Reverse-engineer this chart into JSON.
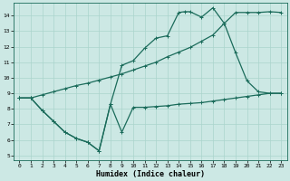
{
  "xlabel": "Humidex (Indice chaleur)",
  "bg_color": "#cce8e4",
  "line_color": "#1a6b5a",
  "grid_color": "#aad4cc",
  "xlim": [
    -0.5,
    23.5
  ],
  "ylim": [
    4.7,
    14.8
  ],
  "yticks": [
    5,
    6,
    7,
    8,
    9,
    10,
    11,
    12,
    13,
    14
  ],
  "xticks": [
    0,
    1,
    2,
    3,
    4,
    5,
    6,
    7,
    8,
    9,
    10,
    11,
    12,
    13,
    14,
    15,
    16,
    17,
    18,
    19,
    20,
    21,
    22,
    23
  ],
  "line1_x": [
    0,
    1,
    2,
    3,
    4,
    5,
    6,
    7,
    8,
    9,
    10,
    11,
    12,
    13,
    14,
    15,
    16,
    17,
    18,
    19,
    20,
    21,
    22,
    23
  ],
  "line1_y": [
    8.7,
    8.7,
    7.9,
    7.2,
    6.5,
    6.1,
    5.85,
    5.3,
    8.3,
    6.5,
    8.1,
    8.1,
    8.15,
    8.2,
    8.3,
    8.35,
    8.4,
    8.5,
    8.6,
    8.7,
    8.8,
    8.9,
    9.0,
    9.0
  ],
  "line2_x": [
    0,
    1,
    2,
    3,
    4,
    5,
    6,
    7,
    8,
    9,
    10,
    11,
    12,
    13,
    14,
    14.5,
    15,
    16,
    17,
    18,
    19,
    20,
    21,
    22,
    23
  ],
  "line2_y": [
    8.7,
    8.7,
    7.9,
    7.2,
    6.5,
    6.1,
    5.85,
    5.3,
    8.3,
    10.8,
    11.1,
    11.9,
    12.55,
    12.7,
    14.2,
    14.25,
    14.25,
    13.9,
    14.5,
    13.5,
    11.6,
    9.8,
    9.1,
    9.0,
    9.0
  ],
  "line3_x": [
    0,
    1,
    2,
    3,
    4,
    5,
    6,
    7,
    8,
    9,
    10,
    11,
    12,
    13,
    14,
    15,
    16,
    17,
    18,
    19,
    20,
    21,
    22,
    23
  ],
  "line3_y": [
    8.7,
    8.7,
    8.9,
    9.1,
    9.3,
    9.5,
    9.65,
    9.85,
    10.05,
    10.25,
    10.5,
    10.75,
    11.0,
    11.35,
    11.65,
    11.95,
    12.35,
    12.75,
    13.5,
    14.2,
    14.2,
    14.2,
    14.25,
    14.2
  ]
}
